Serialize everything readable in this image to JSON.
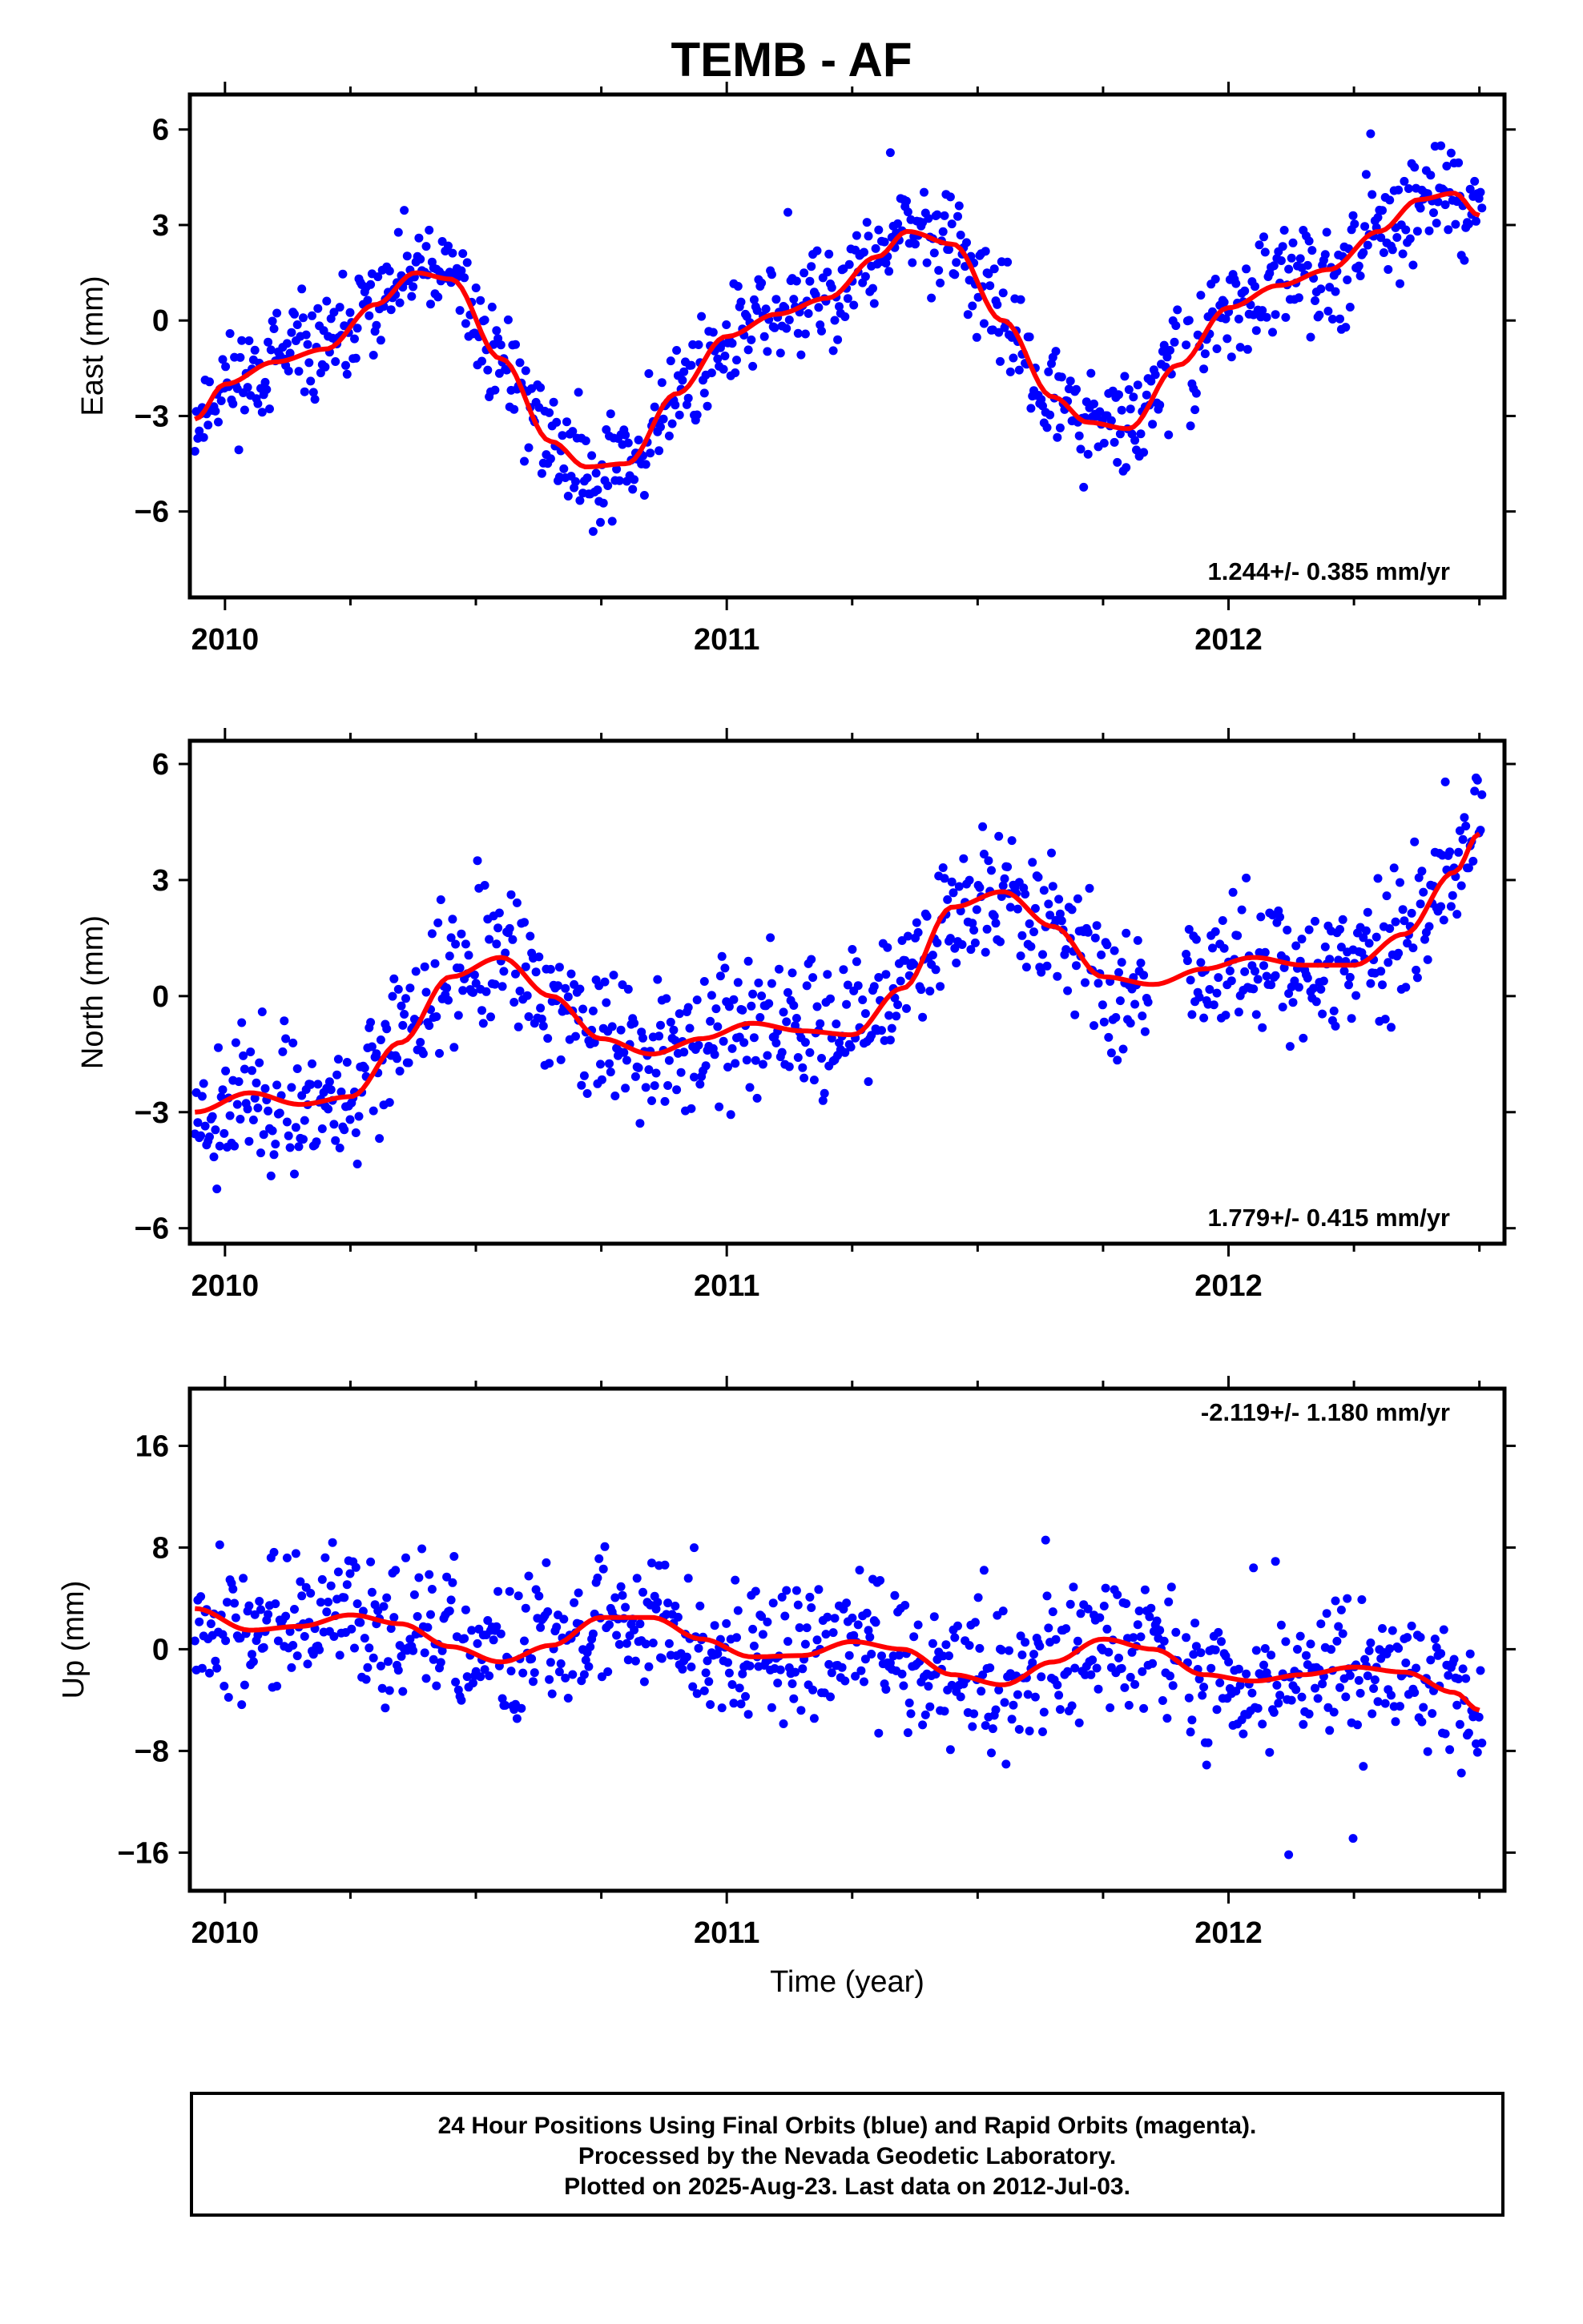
{
  "title": "TEMB - AF",
  "chart_data": [
    {
      "type": "scatter",
      "name": "east",
      "ylabel": "East (mm)",
      "xlabel": "",
      "xlim": [
        2009.93,
        2012.55
      ],
      "ylim": [
        -8.7,
        7.1
      ],
      "yticks": [
        6,
        3,
        0,
        -3,
        -6
      ],
      "xticks": [
        2010,
        2011,
        2012
      ],
      "rate": "1.244+/- 0.385 mm/yr",
      "seed": 11,
      "fit_x": [
        2009.94,
        2010.0,
        2010.1,
        2010.2,
        2010.3,
        2010.38,
        2010.45,
        2010.55,
        2010.65,
        2010.72,
        2010.8,
        2010.9,
        2011.0,
        2011.1,
        2011.2,
        2011.3,
        2011.36,
        2011.45,
        2011.55,
        2011.65,
        2011.72,
        2011.8,
        2011.9,
        2012.0,
        2012.1,
        2012.2,
        2012.3,
        2012.38,
        2012.45,
        2012.5
      ],
      "fit_y": [
        -3.1,
        -2.0,
        -1.3,
        -0.9,
        0.5,
        1.5,
        1.3,
        -1.2,
        -3.8,
        -4.6,
        -4.5,
        -2.3,
        -0.5,
        0.2,
        0.7,
        2.0,
        2.8,
        2.4,
        0.0,
        -2.4,
        -3.2,
        -3.4,
        -1.4,
        0.4,
        1.1,
        1.6,
        2.8,
        3.8,
        4.0,
        3.3
      ],
      "noise": 1.1
    },
    {
      "type": "scatter",
      "name": "north",
      "ylabel": "North (mm)",
      "xlabel": "",
      "xlim": [
        2009.93,
        2012.55
      ],
      "ylim": [
        -6.4,
        6.6
      ],
      "yticks": [
        6,
        3,
        0,
        -3,
        -6
      ],
      "xticks": [
        2010,
        2011,
        2012
      ],
      "rate": "1.779+/- 0.415 mm/yr",
      "seed": 23,
      "fit_x": [
        2009.94,
        2010.05,
        2010.15,
        2010.25,
        2010.35,
        2010.45,
        2010.55,
        2010.65,
        2010.75,
        2010.85,
        2010.95,
        2011.05,
        2011.15,
        2011.25,
        2011.35,
        2011.45,
        2011.55,
        2011.65,
        2011.75,
        2011.85,
        2011.95,
        2012.05,
        2012.15,
        2012.25,
        2012.35,
        2012.45,
        2012.5
      ],
      "fit_y": [
        -3.0,
        -2.5,
        -2.8,
        -2.6,
        -1.2,
        0.5,
        1.0,
        0.0,
        -1.1,
        -1.5,
        -1.1,
        -0.7,
        -0.9,
        -1.0,
        0.2,
        2.3,
        2.7,
        1.8,
        0.5,
        0.3,
        0.7,
        1.0,
        0.8,
        0.8,
        1.6,
        3.2,
        4.2
      ],
      "noise": 1.2
    },
    {
      "type": "scatter",
      "name": "up",
      "ylabel": "Up (mm)",
      "xlabel": "Time (year)",
      "xlim": [
        2009.93,
        2012.55
      ],
      "ylim": [
        -19,
        20.5
      ],
      "yticks": [
        16,
        8,
        0,
        -8,
        -16
      ],
      "xticks": [
        2010,
        2011,
        2012
      ],
      "rate": "-2.119+/- 1.180 mm/yr",
      "seed": 37,
      "fit_x": [
        2009.94,
        2010.05,
        2010.15,
        2010.25,
        2010.35,
        2010.45,
        2010.55,
        2010.65,
        2010.75,
        2010.85,
        2010.95,
        2011.05,
        2011.15,
        2011.25,
        2011.35,
        2011.45,
        2011.55,
        2011.65,
        2011.75,
        2011.85,
        2011.95,
        2012.05,
        2012.15,
        2012.25,
        2012.35,
        2012.45,
        2012.5
      ],
      "fit_y": [
        3.2,
        1.5,
        1.8,
        2.7,
        2.0,
        0.2,
        -1.0,
        0.3,
        2.5,
        2.5,
        0.8,
        -0.6,
        -0.5,
        0.6,
        0.0,
        -2.0,
        -2.8,
        -1.0,
        0.8,
        0.0,
        -2.0,
        -2.5,
        -2.0,
        -1.4,
        -1.8,
        -3.4,
        -4.8
      ],
      "noise": 3.8
    }
  ],
  "footer": {
    "line1": "24 Hour Positions Using Final Orbits (blue) and Rapid Orbits (magenta).",
    "line2": "Processed by the Nevada Geodetic Laboratory.",
    "line3": "Plotted on 2025-Aug-23. Last data on 2012-Jul-03."
  },
  "colors": {
    "points": "#0000ff",
    "fit": "#ff0000",
    "frame": "#000000"
  }
}
